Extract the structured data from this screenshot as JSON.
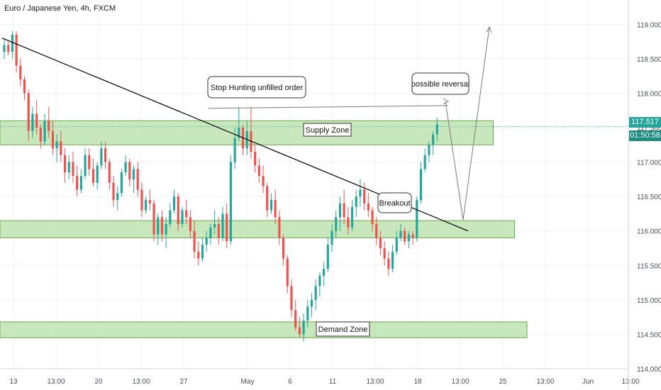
{
  "chart_data": {
    "type": "candlestick",
    "title": "Euro / Japanese Yen, 4h, FXCM",
    "colors": {
      "up": "#26a69a",
      "down": "#ef5350",
      "zone_fill": "#b7dfa6",
      "zone_stroke": "#6aa84f",
      "grid": "#eef1f5",
      "trendline": "#000000",
      "arrow": "#7a7a7a"
    },
    "y_axis": {
      "min": 114.0,
      "max": 119.25,
      "ticks": [
        "114.000",
        "114.500",
        "115.000",
        "115.500",
        "116.000",
        "116.500",
        "117.000",
        "117.500",
        "118.000",
        "118.500",
        "119.000"
      ]
    },
    "x_axis": {
      "tick_labels": [
        "13",
        "13:00",
        "20",
        "13:00",
        "27",
        "May",
        "6",
        "11",
        "13:00",
        "18",
        "13:00",
        "25",
        "13:00",
        "Jun",
        "13:00"
      ],
      "tick_positions_bars": [
        0,
        12,
        24,
        36,
        48,
        66,
        78,
        90,
        102,
        114,
        126,
        138,
        150,
        162,
        174
      ]
    },
    "current_price": 117.517,
    "current_price_label": "117.517",
    "countdown": "01:50:58",
    "zones": [
      {
        "name": "Supply Zone",
        "label": "Supply Zone",
        "low": 117.25,
        "high": 117.6,
        "start_bar": 0,
        "end_bar": 138.5
      },
      {
        "name": "middle-zone",
        "label": "",
        "low": 115.9,
        "high": 116.15,
        "start_bar": 0,
        "end_bar": 144.5
      },
      {
        "name": "Demand Zone",
        "label": "Demand Zone",
        "low": 114.45,
        "high": 114.68,
        "start_bar": 0,
        "end_bar": 148
      }
    ],
    "annotations": [
      {
        "text": "Stop Hunting unfilled order",
        "price": 118.05,
        "bar": 71
      },
      {
        "text": "possible reversal",
        "price": 118.06,
        "bar": 122.5
      },
      {
        "text": "Breakout",
        "price": 116.5,
        "bar": 109.5
      },
      {
        "text": "Supply Zone",
        "price": 117.41,
        "bar": 91
      },
      {
        "text": "Demand Zone",
        "price": 114.55,
        "bar": 95
      }
    ],
    "trendline": {
      "start": {
        "bar": 0,
        "price": 118.8
      },
      "end": {
        "bar": 130,
        "price": 116.0
      }
    },
    "projection_path": [
      {
        "bar": 121,
        "price": 117.82
      },
      {
        "bar": 125,
        "price": 117.82
      },
      {
        "bar": 129,
        "price": 116.08
      },
      {
        "bar": 136.5,
        "price": 118.9
      }
    ],
    "hunt_line": {
      "start": {
        "bar": 57,
        "price": 117.78
      },
      "end": {
        "bar": 125,
        "price": 117.82
      }
    },
    "candles": [
      [
        118.6,
        118.8,
        118.5,
        118.7
      ],
      [
        118.7,
        118.75,
        118.55,
        118.6
      ],
      [
        118.6,
        118.9,
        118.5,
        118.85
      ],
      [
        118.85,
        118.9,
        118.3,
        118.4
      ],
      [
        118.4,
        118.5,
        118.1,
        118.2
      ],
      [
        118.2,
        118.25,
        117.9,
        118.0
      ],
      [
        118.0,
        118.05,
        117.3,
        117.45
      ],
      [
        117.45,
        117.8,
        117.35,
        117.7
      ],
      [
        117.7,
        117.9,
        117.4,
        117.5
      ],
      [
        117.5,
        117.55,
        117.2,
        117.3
      ],
      [
        117.3,
        117.7,
        117.25,
        117.6
      ],
      [
        117.6,
        117.8,
        117.35,
        117.45
      ],
      [
        117.45,
        117.6,
        117.1,
        117.2
      ],
      [
        117.2,
        117.4,
        117.0,
        117.3
      ],
      [
        117.3,
        117.45,
        117.0,
        117.1
      ],
      [
        117.1,
        117.2,
        116.7,
        116.85
      ],
      [
        116.85,
        117.1,
        116.75,
        117.0
      ],
      [
        117.0,
        117.15,
        116.7,
        116.8
      ],
      [
        116.8,
        116.95,
        116.5,
        116.6
      ],
      [
        116.6,
        116.9,
        116.55,
        116.8
      ],
      [
        116.8,
        117.2,
        116.75,
        117.1
      ],
      [
        117.1,
        117.2,
        116.8,
        116.9
      ],
      [
        116.9,
        117.05,
        116.65,
        116.7
      ],
      [
        116.7,
        117.0,
        116.6,
        116.95
      ],
      [
        116.95,
        117.3,
        116.9,
        117.2
      ],
      [
        117.2,
        117.3,
        116.9,
        117.0
      ],
      [
        117.0,
        117.05,
        116.6,
        116.7
      ],
      [
        116.7,
        116.8,
        116.35,
        116.45
      ],
      [
        116.45,
        116.65,
        116.3,
        116.55
      ],
      [
        116.55,
        116.9,
        116.5,
        116.85
      ],
      [
        116.85,
        117.1,
        116.8,
        117.0
      ],
      [
        117.0,
        117.05,
        116.65,
        116.75
      ],
      [
        116.75,
        116.95,
        116.55,
        116.9
      ],
      [
        116.9,
        117.0,
        116.5,
        116.6
      ],
      [
        116.6,
        116.7,
        116.2,
        116.3
      ],
      [
        116.3,
        116.5,
        116.25,
        116.45
      ],
      [
        116.45,
        116.6,
        116.3,
        116.4
      ],
      [
        116.4,
        116.45,
        115.85,
        115.95
      ],
      [
        115.95,
        116.25,
        115.8,
        116.2
      ],
      [
        116.2,
        116.3,
        115.85,
        115.95
      ],
      [
        115.95,
        116.2,
        115.75,
        116.1
      ],
      [
        116.1,
        116.4,
        116.05,
        116.3
      ],
      [
        116.3,
        116.6,
        116.25,
        116.5
      ],
      [
        116.5,
        116.55,
        116.0,
        116.1
      ],
      [
        116.1,
        116.35,
        116.05,
        116.3
      ],
      [
        116.3,
        116.45,
        116.1,
        116.2
      ],
      [
        116.2,
        116.3,
        115.9,
        116.0
      ],
      [
        116.0,
        116.15,
        115.6,
        115.7
      ],
      [
        115.7,
        115.85,
        115.5,
        115.6
      ],
      [
        115.6,
        115.9,
        115.55,
        115.8
      ],
      [
        115.8,
        116.0,
        115.7,
        115.9
      ],
      [
        115.9,
        116.1,
        115.8,
        116.05
      ],
      [
        116.05,
        116.3,
        115.95,
        116.1
      ],
      [
        116.1,
        116.2,
        115.8,
        115.9
      ],
      [
        115.9,
        116.35,
        115.85,
        116.25
      ],
      [
        116.25,
        116.4,
        115.75,
        115.85
      ],
      [
        115.85,
        117.1,
        115.8,
        117.0
      ],
      [
        117.0,
        117.5,
        116.9,
        117.35
      ],
      [
        117.35,
        117.8,
        117.3,
        117.5
      ],
      [
        117.5,
        117.55,
        117.1,
        117.2
      ],
      [
        117.2,
        117.6,
        117.1,
        117.45
      ],
      [
        117.45,
        117.8,
        117.05,
        117.15
      ],
      [
        117.15,
        117.25,
        116.85,
        116.95
      ],
      [
        116.95,
        117.05,
        116.7,
        116.8
      ],
      [
        116.8,
        116.95,
        116.55,
        116.65
      ],
      [
        116.65,
        116.7,
        116.2,
        116.3
      ],
      [
        116.3,
        116.55,
        116.25,
        116.45
      ],
      [
        116.45,
        116.6,
        116.1,
        116.2
      ],
      [
        116.2,
        116.3,
        115.8,
        115.9
      ],
      [
        115.9,
        115.95,
        115.5,
        115.6
      ],
      [
        115.6,
        115.65,
        115.1,
        115.2
      ],
      [
        115.2,
        115.3,
        114.75,
        114.85
      ],
      [
        114.85,
        115.0,
        114.55,
        114.6
      ],
      [
        114.6,
        114.75,
        114.45,
        114.5
      ],
      [
        114.5,
        114.8,
        114.4,
        114.7
      ],
      [
        114.7,
        115.0,
        114.6,
        114.9
      ],
      [
        114.9,
        115.1,
        114.75,
        115.0
      ],
      [
        115.0,
        115.3,
        114.85,
        115.2
      ],
      [
        115.2,
        115.4,
        115.05,
        115.35
      ],
      [
        115.35,
        115.55,
        115.2,
        115.45
      ],
      [
        115.45,
        115.9,
        115.4,
        115.8
      ],
      [
        115.8,
        116.1,
        115.7,
        116.0
      ],
      [
        116.0,
        116.3,
        115.9,
        116.2
      ],
      [
        116.2,
        116.5,
        116.0,
        116.4
      ],
      [
        116.4,
        116.6,
        116.1,
        116.2
      ],
      [
        116.2,
        116.35,
        115.95,
        116.05
      ],
      [
        116.05,
        116.45,
        116.0,
        116.35
      ],
      [
        116.35,
        116.6,
        116.2,
        116.5
      ],
      [
        116.5,
        116.75,
        116.35,
        116.6
      ],
      [
        116.6,
        116.7,
        116.3,
        116.4
      ],
      [
        116.4,
        116.55,
        116.2,
        116.3
      ],
      [
        116.3,
        116.35,
        116.0,
        116.1
      ],
      [
        116.1,
        116.2,
        115.8,
        115.9
      ],
      [
        115.9,
        116.0,
        115.65,
        115.75
      ],
      [
        115.75,
        115.85,
        115.5,
        115.6
      ],
      [
        115.6,
        115.7,
        115.35,
        115.45
      ],
      [
        115.45,
        115.8,
        115.4,
        115.7
      ],
      [
        115.7,
        116.0,
        115.65,
        115.9
      ],
      [
        115.9,
        116.1,
        115.85,
        116.0
      ],
      [
        116.0,
        116.05,
        115.8,
        115.85
      ],
      [
        115.85,
        116.0,
        115.75,
        115.95
      ],
      [
        115.95,
        116.0,
        115.8,
        115.9
      ],
      [
        115.9,
        116.5,
        115.85,
        116.45
      ],
      [
        116.45,
        117.0,
        116.4,
        116.9
      ],
      [
        116.9,
        117.2,
        116.85,
        117.1
      ],
      [
        117.1,
        117.3,
        117.0,
        117.25
      ],
      [
        117.25,
        117.45,
        117.1,
        117.4
      ],
      [
        117.4,
        117.65,
        117.3,
        117.55
      ]
    ]
  }
}
